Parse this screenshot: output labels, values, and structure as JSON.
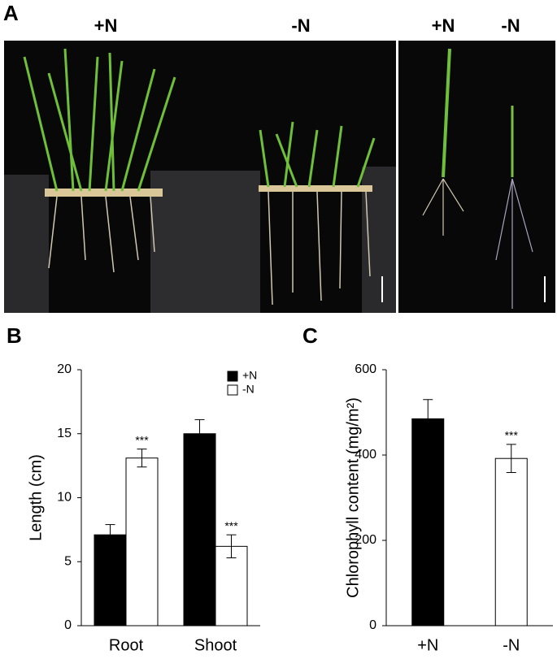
{
  "panel_a": {
    "panel_label": "A",
    "photo_labels": [
      "+N",
      "-N",
      "+N",
      "-N"
    ]
  },
  "chart_data": [
    {
      "type": "bar",
      "panel_label": "B",
      "y_label": "Length (cm)",
      "categories": [
        "Root",
        "Shoot"
      ],
      "series": [
        {
          "name": "+N",
          "color": "#000000",
          "values": [
            7.1,
            15.0
          ],
          "errors": [
            0.8,
            1.1
          ]
        },
        {
          "name": "-N",
          "color": "#ffffff",
          "values": [
            13.1,
            6.2
          ],
          "errors": [
            0.7,
            0.9
          ],
          "annotations": [
            "***",
            "***"
          ]
        }
      ],
      "ylim": [
        0,
        20
      ],
      "yticks": [
        0,
        5,
        10,
        15,
        20
      ],
      "legend": "upper right"
    },
    {
      "type": "bar",
      "panel_label": "C",
      "y_label": "Chlorophyll content (mg/m²)",
      "categories": [
        "+N",
        "-N"
      ],
      "values": [
        485,
        392
      ],
      "errors": [
        45,
        33
      ],
      "colors": [
        "#000000",
        "#ffffff"
      ],
      "annotations": [
        null,
        "***"
      ],
      "ylim": [
        0,
        600
      ],
      "yticks": [
        0,
        200,
        400,
        600
      ]
    }
  ]
}
